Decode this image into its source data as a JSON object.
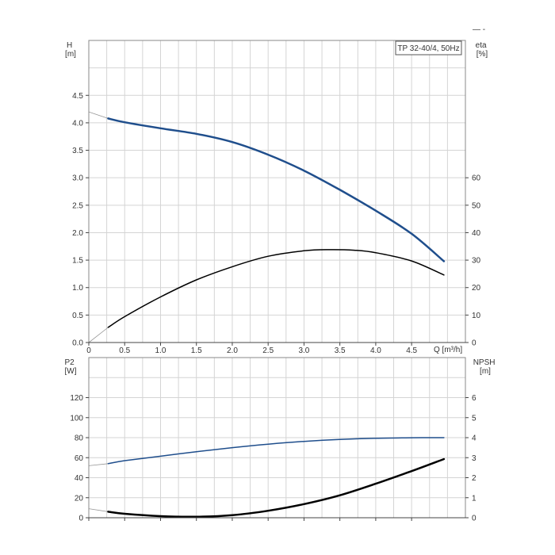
{
  "corner_marks": "— -",
  "chart_data": [
    {
      "type": "line",
      "title": "TP 32-40/4, 50Hz",
      "xlabel": "Q [m³/h]",
      "xlim": [
        0,
        5.25
      ],
      "x_ticks": [
        "0",
        "0.5",
        "1.0",
        "1.5",
        "2.0",
        "2.5",
        "3.0",
        "3.5",
        "4.0",
        "4.5"
      ],
      "x_tick_values": [
        0,
        0.5,
        1.0,
        1.5,
        2.0,
        2.5,
        3.0,
        3.5,
        4.0,
        4.5
      ],
      "ylabel_left": [
        "H",
        "[m]"
      ],
      "ylim_left": [
        0,
        5.5
      ],
      "y_ticks_left": [
        "0.0",
        "0.5",
        "1.0",
        "1.5",
        "2.0",
        "2.5",
        "3.0",
        "3.5",
        "4.0",
        "4.5"
      ],
      "y_tick_values_left": [
        0,
        0.5,
        1.0,
        1.5,
        2.0,
        2.5,
        3.0,
        3.5,
        4.0,
        4.5
      ],
      "ylabel_right": [
        "eta",
        "[%]"
      ],
      "ylim_right": [
        0,
        110
      ],
      "y_ticks_right": [
        "0",
        "10",
        "20",
        "30",
        "40",
        "50",
        "60"
      ],
      "y_tick_values_right": [
        0,
        10,
        20,
        30,
        40,
        50,
        60
      ],
      "grid": true,
      "series": [
        {
          "axis": "left",
          "color": "#1f4e8c",
          "width": 2.5,
          "x": [
            0.27,
            0.5,
            1.0,
            1.5,
            2.0,
            2.5,
            3.0,
            3.5,
            4.0,
            4.5,
            4.95
          ],
          "y": [
            4.08,
            4.01,
            3.9,
            3.8,
            3.65,
            3.42,
            3.13,
            2.78,
            2.4,
            1.98,
            1.48
          ],
          "ext_x": [
            0,
            0.27
          ],
          "ext_y": [
            4.2,
            4.08
          ]
        },
        {
          "axis": "right",
          "color": "#000000",
          "width": 1.5,
          "x": [
            0.27,
            0.5,
            1.0,
            1.5,
            2.0,
            2.5,
            3.0,
            3.35,
            3.7,
            4.0,
            4.5,
            4.95
          ],
          "y": [
            5.5,
            9.4,
            16.6,
            22.8,
            27.6,
            31.4,
            33.4,
            33.8,
            33.6,
            32.7,
            29.7,
            24.6
          ],
          "ext_x": [
            0,
            0.27
          ],
          "ext_y": [
            0,
            5.5
          ]
        }
      ]
    },
    {
      "type": "line",
      "xlim": [
        0,
        5.25
      ],
      "ylabel_left": [
        "P2",
        "[W]"
      ],
      "ylim_left": [
        0,
        160
      ],
      "y_ticks_left": [
        "0",
        "20",
        "40",
        "60",
        "80",
        "100",
        "120"
      ],
      "y_tick_values_left": [
        0,
        20,
        40,
        60,
        80,
        100,
        120
      ],
      "ylabel_right": [
        "NPSH",
        "[m]"
      ],
      "ylim_right": [
        0,
        8
      ],
      "y_ticks_right": [
        "0",
        "1",
        "2",
        "3",
        "4",
        "5",
        "6"
      ],
      "y_tick_values_right": [
        0,
        1,
        2,
        3,
        4,
        5,
        6
      ],
      "grid": true,
      "series": [
        {
          "axis": "left",
          "color": "#1f4e8c",
          "width": 1.5,
          "x": [
            0.27,
            0.5,
            1.0,
            1.5,
            2.0,
            2.5,
            3.0,
            3.5,
            4.0,
            4.5,
            4.95
          ],
          "y": [
            54,
            57,
            61.5,
            66,
            70,
            73.5,
            76.3,
            78.2,
            79.4,
            79.9,
            80
          ],
          "ext_x": [
            0,
            0.27
          ],
          "ext_y": [
            52,
            54
          ]
        },
        {
          "axis": "right",
          "color": "#000000",
          "width": 2.5,
          "x": [
            0.27,
            0.5,
            1.0,
            1.5,
            2.0,
            2.5,
            3.0,
            3.5,
            4.0,
            4.5,
            4.95
          ],
          "y": [
            0.3,
            0.2,
            0.08,
            0.05,
            0.13,
            0.35,
            0.68,
            1.12,
            1.7,
            2.33,
            2.93
          ],
          "ext_x": [
            0,
            0.27
          ],
          "ext_y": [
            0.45,
            0.3
          ]
        }
      ]
    }
  ]
}
